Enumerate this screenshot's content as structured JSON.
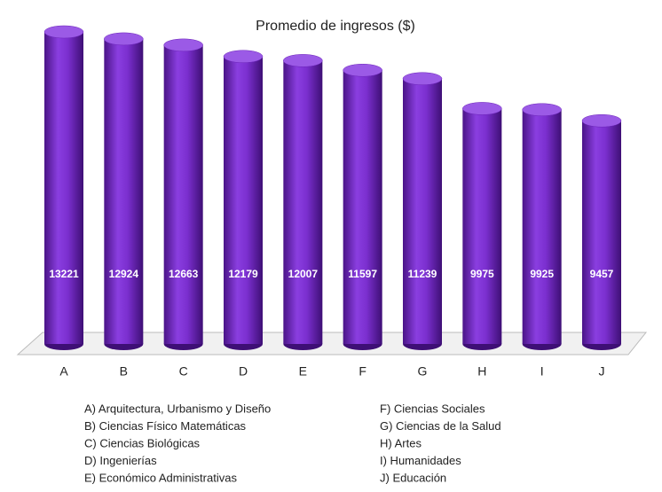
{
  "chart_data": {
    "type": "bar",
    "title": "Promedio de ingresos ($)",
    "categories": [
      "A",
      "B",
      "C",
      "D",
      "E",
      "F",
      "G",
      "H",
      "I",
      "J"
    ],
    "values": [
      13221,
      12924,
      12663,
      12179,
      12007,
      11597,
      11239,
      9975,
      9925,
      9457
    ],
    "color": "#7b2fcf",
    "legend_items": [
      "A) Arquitectura, Urbanismo y Diseño",
      "B) Ciencias Físico Matemáticas",
      "C) Ciencias Biológicas",
      "D) Ingenierías",
      "E) Económico Administrativas",
      "F) Ciencias Sociales",
      "G) Ciencias de la Salud",
      "H) Artes",
      "I)  Humanidades",
      "J) Educación"
    ]
  }
}
